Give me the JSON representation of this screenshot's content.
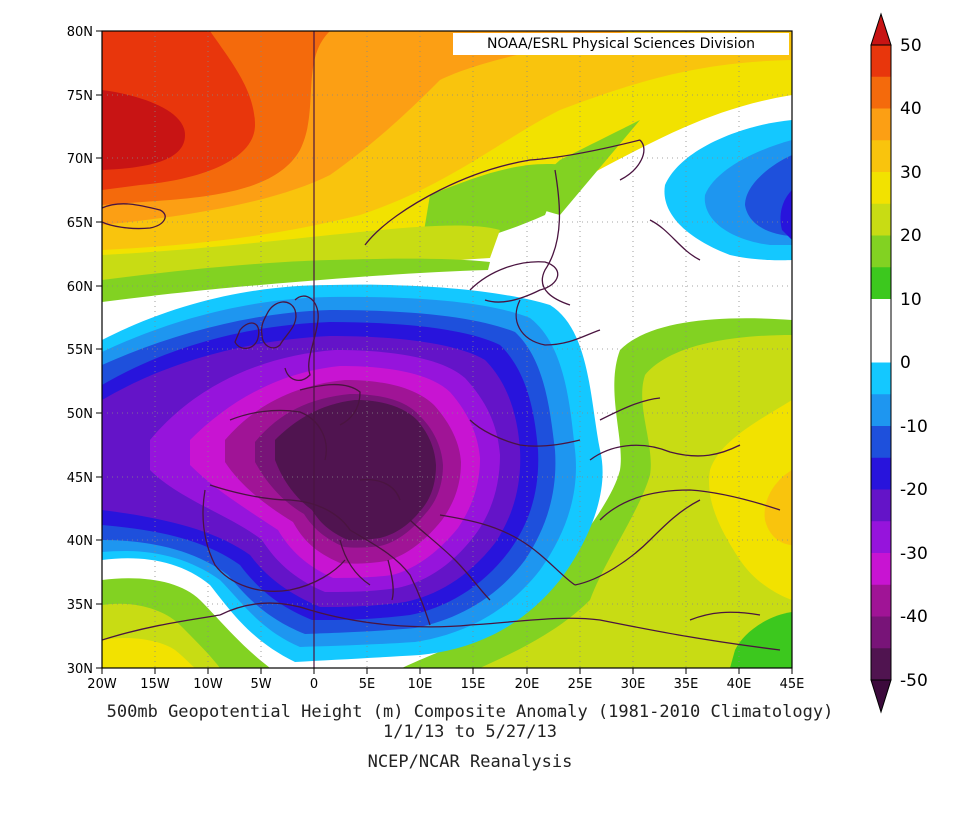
{
  "credit": "NOAA/ESRL Physical Sciences Division",
  "caption": {
    "line1": "500mb Geopotential Height (m) Composite Anomaly (1981-2010 Climatology)",
    "line2": "1/1/13  to 5/27/13",
    "line3": "NCEP/NCAR Reanalysis"
  },
  "map": {
    "lon_range": [
      -20,
      45
    ],
    "lat_range": [
      30,
      80
    ],
    "lon_ticks": [
      "20W",
      "15W",
      "10W",
      "5W",
      "0",
      "5E",
      "10E",
      "15E",
      "20E",
      "25E",
      "30E",
      "35E",
      "40E",
      "45E"
    ],
    "lat_ticks": [
      "80N",
      "75N",
      "70N",
      "65N",
      "60N",
      "55N",
      "50N",
      "45N",
      "40N",
      "35N",
      "30N"
    ]
  },
  "colorbar": {
    "labels": [
      "50",
      "40",
      "30",
      "20",
      "10",
      "0",
      "-10",
      "-20",
      "-30",
      "-40",
      "-50"
    ],
    "colors": [
      "#e8360c",
      "#f46a0c",
      "#fc9f14",
      "#f9c40d",
      "#f2e200",
      "#c8dc14",
      "#82d222",
      "#3cc81e",
      "#ffffff",
      "#ffffff",
      "#14c8ff",
      "#1e96f0",
      "#1e50dc",
      "#2814dc",
      "#6414c8",
      "#9614dc",
      "#c814d2",
      "#a01496",
      "#781478",
      "#501450"
    ],
    "top_arrow_color": "#c81414",
    "bottom_arrow_color": "#3c0a3c"
  }
}
